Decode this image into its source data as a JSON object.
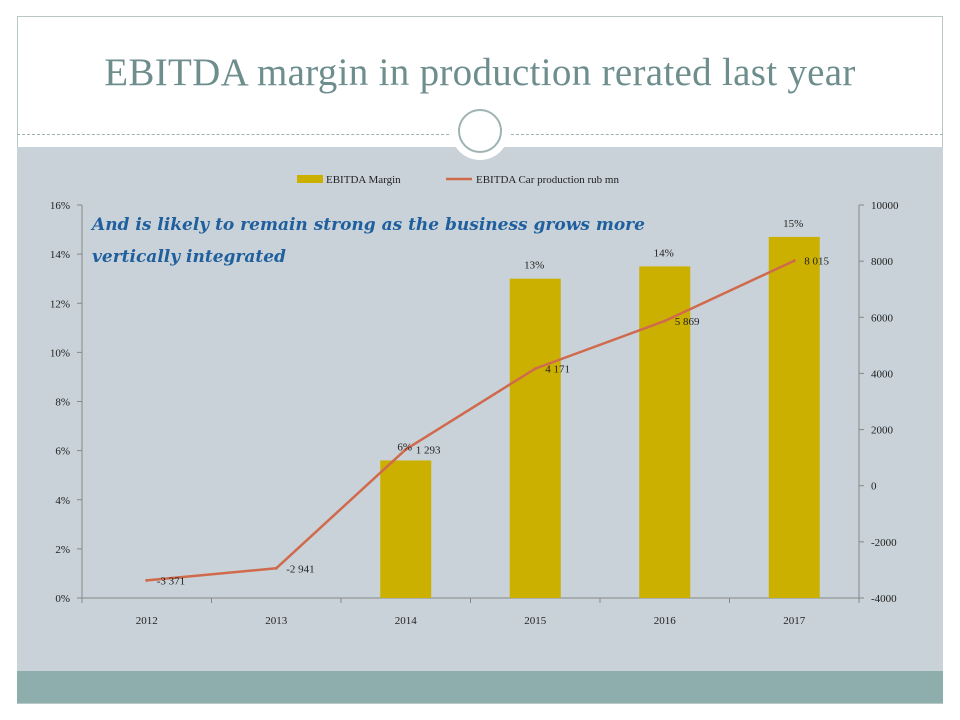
{
  "slide": {
    "title": "EBITDA margin in production rerated last year"
  },
  "colors": {
    "bar": "#ccb000",
    "line": "#d06a4c",
    "annotation": "#1f5f9e",
    "axis": "#888888",
    "text": "#222222"
  },
  "chart_data": {
    "type": "bar+line",
    "categories": [
      "2012",
      "2013",
      "2014",
      "2015",
      "2016",
      "2017"
    ],
    "series": [
      {
        "name": "EBITDA Margin",
        "type": "bar",
        "axis": "left",
        "values": [
          null,
          null,
          0.056,
          0.13,
          0.135,
          0.147
        ],
        "labels": [
          "",
          "",
          "6%",
          "13%",
          "14%",
          "15%"
        ]
      },
      {
        "name": "EBITDA Car production rub mn",
        "type": "line",
        "axis": "right",
        "values": [
          -3371,
          -2941,
          1293,
          4171,
          5869,
          8015
        ],
        "labels": [
          "-3 371",
          "-2 941",
          "1 293",
          "4 171",
          "5 869",
          "8 015"
        ]
      }
    ],
    "legend": {
      "position": "top-center",
      "bar_label": "EBITDA Margin",
      "line_label": "EBITDA Car production rub mn"
    },
    "left_axis": {
      "ylim": [
        0,
        0.16
      ],
      "ticks": [
        "0%",
        "2%",
        "4%",
        "6%",
        "8%",
        "10%",
        "12%",
        "14%",
        "16%"
      ]
    },
    "right_axis": {
      "ylim": [
        -4000,
        10000
      ],
      "ticks": [
        "-4000",
        "-2000",
        "0",
        "2000",
        "4000",
        "6000",
        "8000",
        "10000"
      ]
    },
    "annotation": {
      "line1": "And is likely to remain strong as the business grows more",
      "line2": "vertically integrated"
    }
  }
}
